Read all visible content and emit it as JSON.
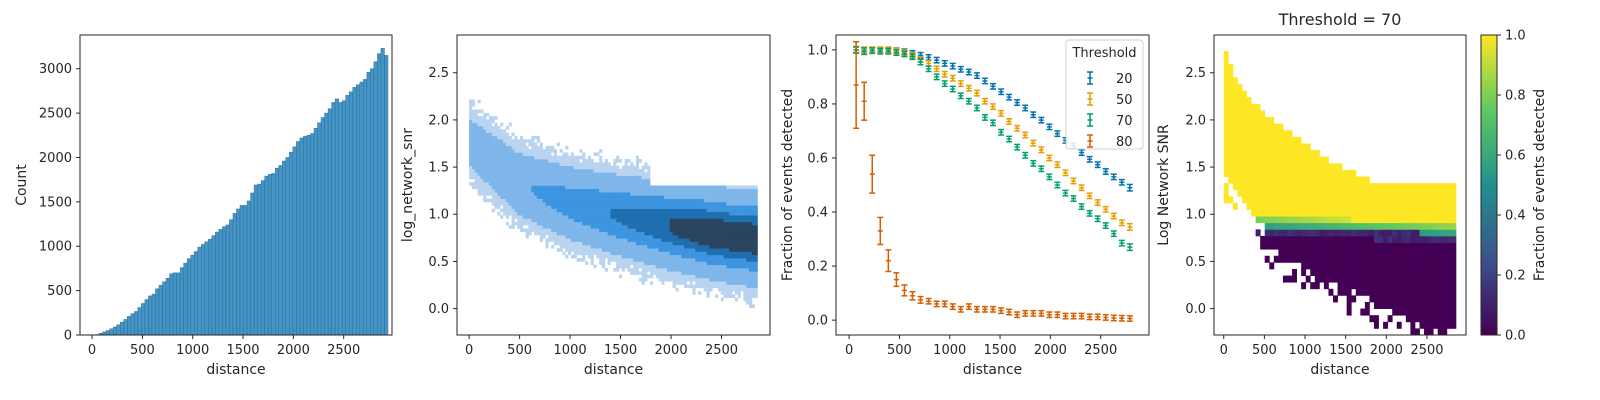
{
  "chart_data": [
    {
      "type": "bar",
      "subtype": "histogram",
      "xlabel": "distance",
      "ylabel": "Count",
      "xlim": [
        -120,
        2980
      ],
      "ylim": [
        0,
        3380
      ],
      "xticks": [
        0,
        500,
        1000,
        1500,
        2000,
        2500
      ],
      "xtick_labels": [
        "0",
        "500",
        "1000",
        "1500",
        "2000",
        "2500"
      ],
      "yticks": [
        0,
        500,
        1000,
        1500,
        2000,
        2500,
        3000
      ],
      "ytick_labels": [
        "0",
        "500",
        "1000",
        "1500",
        "2000",
        "2500",
        "3000"
      ],
      "bin_start": 0,
      "bin_width": 35,
      "values": [
        0,
        5,
        20,
        35,
        50,
        70,
        90,
        115,
        145,
        175,
        210,
        240,
        265,
        310,
        355,
        400,
        440,
        460,
        520,
        560,
        600,
        640,
        690,
        700,
        700,
        760,
        810,
        860,
        900,
        940,
        990,
        1020,
        1050,
        1080,
        1120,
        1160,
        1190,
        1220,
        1240,
        1300,
        1370,
        1420,
        1460,
        1460,
        1510,
        1600,
        1690,
        1700,
        1740,
        1790,
        1810,
        1820,
        1880,
        1910,
        1960,
        2000,
        2060,
        2120,
        2180,
        2220,
        2240,
        2250,
        2270,
        2330,
        2390,
        2450,
        2500,
        2550,
        2620,
        2660,
        2620,
        2640,
        2700,
        2740,
        2790,
        2820,
        2850,
        2880,
        2960,
        3000,
        3080,
        3170,
        3230,
        3150
      ],
      "color": "#3a8fc4"
    },
    {
      "type": "heatmap",
      "subtype": "2d-histogram",
      "xlabel": "distance",
      "ylabel": "log_network_snr",
      "xlim": [
        -120,
        2980
      ],
      "ylim": [
        -0.28,
        2.9
      ],
      "xticks": [
        0,
        500,
        1000,
        1500,
        2000,
        2500
      ],
      "xtick_labels": [
        "0",
        "500",
        "1000",
        "1500",
        "2000",
        "2500"
      ],
      "yticks": [
        0.0,
        0.5,
        1.0,
        1.5,
        2.0,
        2.5
      ],
      "ytick_labels": [
        "0.0",
        "0.5",
        "1.0",
        "1.5",
        "2.0",
        "2.5"
      ],
      "trend": {
        "distance": [
          0,
          500,
          1000,
          1500,
          2000,
          2500,
          2850
        ],
        "center": [
          1.75,
          1.3,
          1.1,
          0.97,
          0.86,
          0.77,
          0.72
        ]
      },
      "colors": [
        "#b8d4f0",
        "#7fb6ea",
        "#3d95e0",
        "#1f6fb0",
        "#2a4460"
      ]
    },
    {
      "type": "line",
      "subtype": "errorbar",
      "xlabel": "distance",
      "ylabel": "Fraction of events detected",
      "xlim": [
        -130,
        2980
      ],
      "ylim": [
        -0.055,
        1.055
      ],
      "xticks": [
        0,
        500,
        1000,
        1500,
        2000,
        2500
      ],
      "xtick_labels": [
        "0",
        "500",
        "1000",
        "1500",
        "2000",
        "2500"
      ],
      "yticks": [
        0.0,
        0.2,
        0.4,
        0.6,
        0.8,
        1.0
      ],
      "ytick_labels": [
        "0.0",
        "0.2",
        "0.4",
        "0.6",
        "0.8",
        "1.0"
      ],
      "legend": {
        "title": "Threshold",
        "position": "top-right"
      },
      "x": [
        70,
        150,
        230,
        310,
        390,
        470,
        550,
        630,
        710,
        790,
        870,
        950,
        1030,
        1110,
        1190,
        1270,
        1350,
        1430,
        1510,
        1590,
        1670,
        1750,
        1830,
        1910,
        1990,
        2070,
        2150,
        2230,
        2310,
        2390,
        2470,
        2550,
        2630,
        2710,
        2790
      ],
      "series": [
        {
          "name": "20",
          "color": "#0072b2",
          "values": [
            1.0,
            1.0,
            1.0,
            1.0,
            1.0,
            0.997,
            0.993,
            0.987,
            0.98,
            0.972,
            0.962,
            0.95,
            0.94,
            0.928,
            0.918,
            0.905,
            0.885,
            0.865,
            0.845,
            0.825,
            0.805,
            0.785,
            0.76,
            0.74,
            0.715,
            0.69,
            0.665,
            0.645,
            0.62,
            0.595,
            0.575,
            0.55,
            0.53,
            0.51,
            0.49
          ],
          "err": [
            0.01,
            0.01,
            0.01,
            0.01,
            0.01,
            0.01,
            0.01,
            0.01,
            0.01,
            0.01,
            0.01,
            0.01,
            0.01,
            0.01,
            0.01,
            0.01,
            0.01,
            0.01,
            0.01,
            0.01,
            0.01,
            0.01,
            0.01,
            0.01,
            0.01,
            0.01,
            0.01,
            0.01,
            0.01,
            0.01,
            0.01,
            0.01,
            0.01,
            0.01,
            0.012
          ]
        },
        {
          "name": "50",
          "color": "#e69f00",
          "values": [
            1.0,
            1.0,
            1.0,
            1.0,
            1.0,
            0.996,
            0.99,
            0.98,
            0.965,
            0.95,
            0.93,
            0.91,
            0.895,
            0.875,
            0.858,
            0.84,
            0.81,
            0.79,
            0.765,
            0.735,
            0.71,
            0.685,
            0.655,
            0.63,
            0.6,
            0.575,
            0.545,
            0.515,
            0.49,
            0.46,
            0.435,
            0.41,
            0.385,
            0.36,
            0.345
          ],
          "err": [
            0.01,
            0.01,
            0.01,
            0.01,
            0.01,
            0.01,
            0.01,
            0.01,
            0.01,
            0.01,
            0.01,
            0.01,
            0.01,
            0.01,
            0.01,
            0.01,
            0.01,
            0.01,
            0.01,
            0.01,
            0.01,
            0.01,
            0.01,
            0.01,
            0.01,
            0.01,
            0.01,
            0.01,
            0.01,
            0.01,
            0.01,
            0.01,
            0.01,
            0.01,
            0.012
          ]
        },
        {
          "name": "70",
          "color": "#009e73",
          "values": [
            1.0,
            0.995,
            0.997,
            0.995,
            0.995,
            0.99,
            0.985,
            0.975,
            0.955,
            0.93,
            0.9,
            0.875,
            0.855,
            0.83,
            0.81,
            0.785,
            0.75,
            0.73,
            0.695,
            0.67,
            0.64,
            0.61,
            0.58,
            0.56,
            0.53,
            0.5,
            0.47,
            0.45,
            0.42,
            0.395,
            0.375,
            0.35,
            0.32,
            0.285,
            0.27
          ],
          "err": [
            0.012,
            0.012,
            0.01,
            0.01,
            0.01,
            0.01,
            0.01,
            0.01,
            0.01,
            0.01,
            0.01,
            0.01,
            0.01,
            0.01,
            0.01,
            0.01,
            0.01,
            0.01,
            0.01,
            0.01,
            0.01,
            0.01,
            0.01,
            0.01,
            0.01,
            0.01,
            0.01,
            0.01,
            0.01,
            0.01,
            0.01,
            0.01,
            0.01,
            0.01,
            0.012
          ]
        },
        {
          "name": "80",
          "color": "#d55e00",
          "values": [
            0.87,
            0.81,
            0.54,
            0.33,
            0.22,
            0.15,
            0.11,
            0.09,
            0.075,
            0.07,
            0.06,
            0.06,
            0.05,
            0.04,
            0.05,
            0.04,
            0.04,
            0.04,
            0.035,
            0.03,
            0.02,
            0.025,
            0.025,
            0.025,
            0.02,
            0.02,
            0.015,
            0.015,
            0.015,
            0.012,
            0.012,
            0.01,
            0.008,
            0.007,
            0.006
          ],
          "err": [
            0.16,
            0.07,
            0.07,
            0.05,
            0.04,
            0.025,
            0.02,
            0.015,
            0.012,
            0.01,
            0.01,
            0.01,
            0.01,
            0.01,
            0.01,
            0.01,
            0.01,
            0.01,
            0.01,
            0.01,
            0.01,
            0.01,
            0.01,
            0.01,
            0.01,
            0.01,
            0.01,
            0.01,
            0.01,
            0.01,
            0.01,
            0.01,
            0.01,
            0.01,
            0.01
          ]
        }
      ]
    },
    {
      "type": "heatmap",
      "title": "Threshold = 70",
      "xlabel": "distance",
      "ylabel": "Log Network SNR",
      "xlim": [
        -120,
        2980
      ],
      "ylim": [
        -0.28,
        2.9
      ],
      "xticks": [
        0,
        500,
        1000,
        1500,
        2000,
        2500
      ],
      "xtick_labels": [
        "0",
        "500",
        "1000",
        "1500",
        "2000",
        "2500"
      ],
      "yticks": [
        0.0,
        0.5,
        1.0,
        1.5,
        2.0,
        2.5
      ],
      "ytick_labels": [
        "0.0",
        "0.5",
        "1.0",
        "1.5",
        "2.0",
        "2.5"
      ],
      "colorbar": {
        "label": "Fraction of events detected",
        "ticks": [
          0.0,
          0.2,
          0.4,
          0.6,
          0.8,
          1.0
        ],
        "tick_labels": [
          "0.0",
          "0.2",
          "0.4",
          "0.6",
          "0.8",
          "1.0"
        ],
        "colormap": "viridis",
        "stops": [
          "#440154",
          "#3b528b",
          "#21918c",
          "#5ec962",
          "#fde725"
        ]
      },
      "detection_threshold_snr": [
        0.95,
        0.85
      ]
    }
  ]
}
